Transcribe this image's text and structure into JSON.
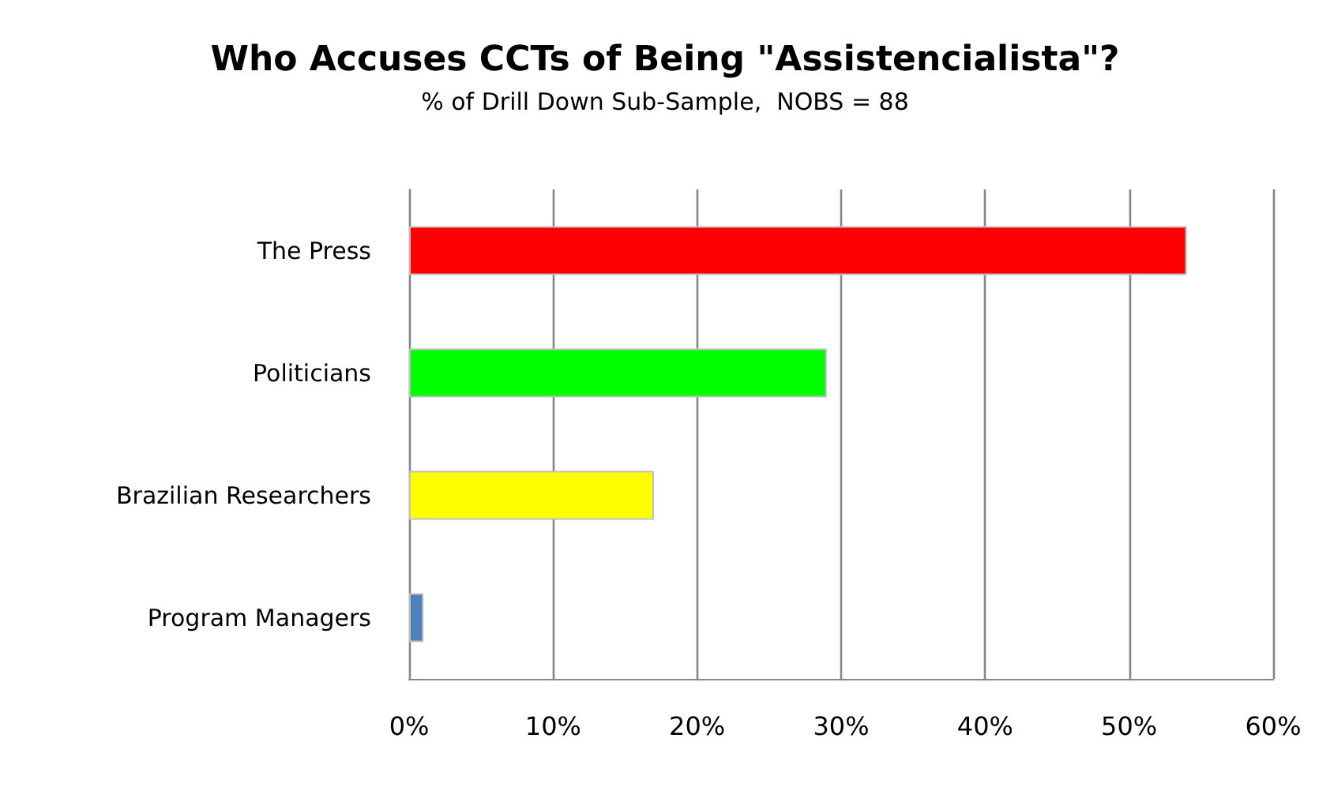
{
  "chart_data": {
    "type": "bar",
    "orientation": "horizontal",
    "title": "Who Accuses CCTs of Being \"Assistencialista\"?",
    "subtitle": "% of Drill Down Sub-Sample,  NOBS = 88",
    "categories": [
      "The Press",
      "Politicians",
      "Brazilian Researchers",
      "Program Managers"
    ],
    "values": [
      54,
      29,
      17,
      1
    ],
    "colors": [
      "#ff0000",
      "#00ff00",
      "#ffff00",
      "#4f81bd"
    ],
    "xlim": [
      0,
      60
    ],
    "xticks": [
      {
        "value": 0,
        "label": "0%"
      },
      {
        "value": 10,
        "label": "10%"
      },
      {
        "value": 20,
        "label": "20%"
      },
      {
        "value": 30,
        "label": "30%"
      },
      {
        "value": 40,
        "label": "40%"
      },
      {
        "value": 50,
        "label": "50%"
      },
      {
        "value": 60,
        "label": "60%"
      }
    ],
    "grid": "x"
  }
}
